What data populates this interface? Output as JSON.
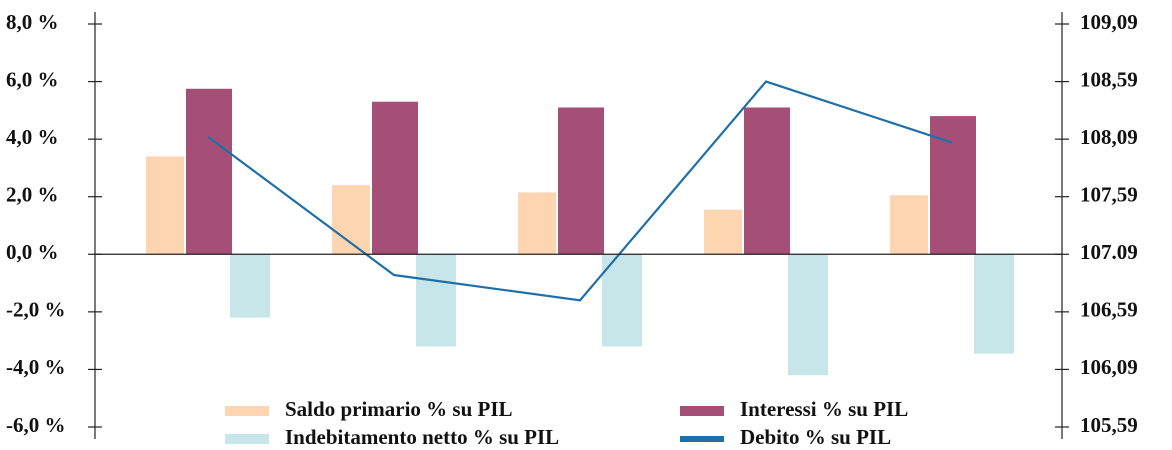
{
  "chart_data": {
    "type": "bar",
    "categories": [
      null,
      null,
      null,
      null,
      null
    ],
    "series": [
      {
        "name": "Saldo primario % su PIL",
        "color": "#fdd5b1",
        "values": [
          3.4,
          2.4,
          2.15,
          1.55,
          2.05
        ]
      },
      {
        "name": "Interessi % su PIL",
        "color": "#a54f77",
        "values": [
          5.75,
          5.3,
          5.1,
          5.1,
          4.8
        ]
      },
      {
        "name": "Indebitamento netto % su PIL",
        "color": "#c6e6ea",
        "values": [
          -2.2,
          -3.2,
          -3.2,
          -4.2,
          -3.45
        ]
      },
      {
        "name": "Debito % su PIL",
        "color": "#1f6fa8",
        "type": "line",
        "axis": "y2",
        "values": [
          108.11,
          106.91,
          106.69,
          108.59,
          108.06
        ]
      }
    ],
    "ylim": [
      -6,
      8
    ],
    "yticks": [
      {
        "value": 8,
        "label": "8,0 %"
      },
      {
        "value": 6,
        "label": "6,0 %"
      },
      {
        "value": 4,
        "label": "4,0 %"
      },
      {
        "value": 2,
        "label": "2,0 %"
      },
      {
        "value": 0,
        "label": "0,0 %"
      },
      {
        "value": -2,
        "label": "-2,0 %"
      },
      {
        "value": -4,
        "label": "-4,0 %"
      },
      {
        "value": -6,
        "label": "-6,0 %"
      }
    ],
    "y2lim": [
      105.59,
      109.09
    ],
    "y2ticks": [
      {
        "value": 109.09,
        "label": "109,09"
      },
      {
        "value": 108.59,
        "label": "108,59"
      },
      {
        "value": 108.09,
        "label": "108,09"
      },
      {
        "value": 107.59,
        "label": "107,59"
      },
      {
        "value": 107.09,
        "label": "107.09"
      },
      {
        "value": 106.59,
        "label": "106,59"
      },
      {
        "value": 106.09,
        "label": "106,09"
      },
      {
        "value": 105.59,
        "label": "105,59"
      }
    ],
    "legend": "bottom"
  }
}
